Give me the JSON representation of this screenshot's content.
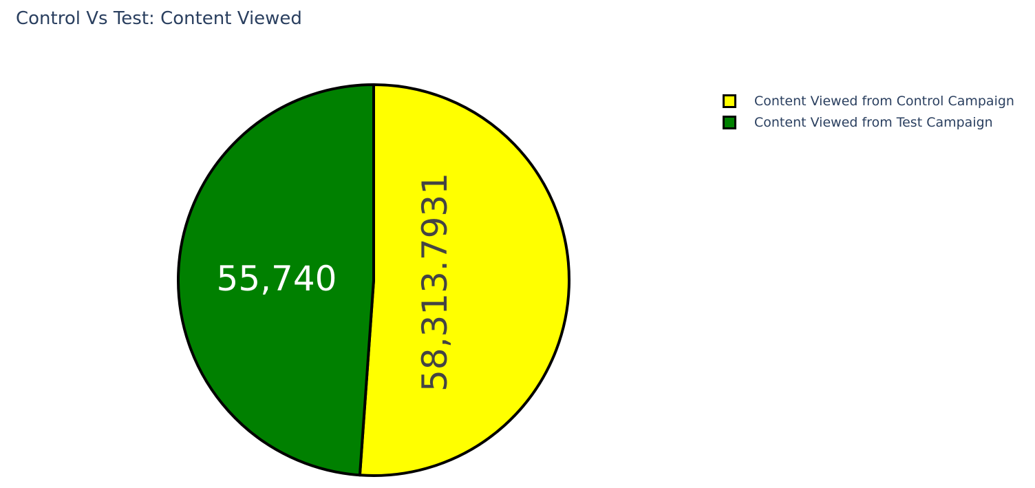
{
  "chart_data": {
    "type": "pie",
    "title": "Control Vs Test: Content Viewed",
    "slices": [
      {
        "name": "Content Viewed from Control Campaign",
        "value": 58313.7931,
        "label": "58,313.7931",
        "color": "#ffff00",
        "label_color": "#444444"
      },
      {
        "name": "Content Viewed from Test Campaign",
        "value": 55740,
        "label": "55,740",
        "color": "#008000",
        "label_color": "#ffffff"
      }
    ],
    "slice_border_color": "#000000",
    "direction": "clockwise",
    "start": "top",
    "legend_position": "top-right"
  }
}
